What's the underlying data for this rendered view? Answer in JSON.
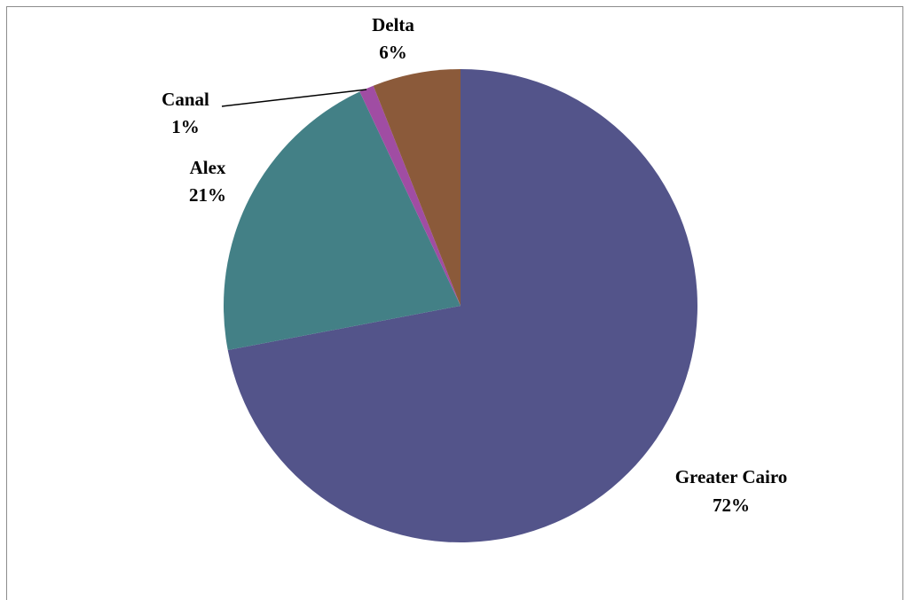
{
  "chart_data": {
    "type": "pie",
    "title": "",
    "slices": [
      {
        "name": "Greater Cairo",
        "value": 72,
        "label": "72%",
        "color": "#53548A"
      },
      {
        "name": "Alex",
        "value": 21,
        "label": "21%",
        "color": "#438086"
      },
      {
        "name": "Canal",
        "value": 1,
        "label": "1%",
        "color": "#A04DA3"
      },
      {
        "name": "Delta",
        "value": 6,
        "label": "6%",
        "color": "#8B5A3A"
      }
    ],
    "start_angle_deg": 0,
    "direction": "clockwise",
    "legend": "none",
    "data_labels": "category-and-percent",
    "leader_lines": [
      "Canal"
    ]
  }
}
